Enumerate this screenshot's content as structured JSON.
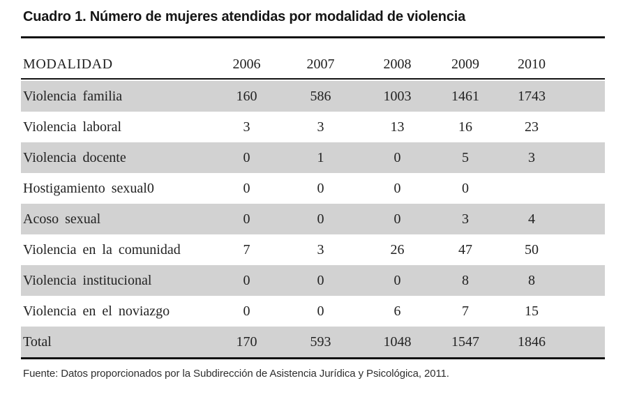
{
  "title": "Cuadro 1. Número de mujeres atendidas por modalidad de violencia",
  "table": {
    "header": {
      "modalidad": "MODALIDAD",
      "years": [
        "2006",
        "2007",
        "2008",
        "2009",
        "2010"
      ]
    },
    "rows": [
      {
        "label": "Violencia familia",
        "values": [
          "160",
          "586",
          "1003",
          "1461",
          "1743"
        ],
        "shaded": true
      },
      {
        "label": "Violencia laboral",
        "values": [
          "3",
          "3",
          "13",
          "16",
          "23"
        ],
        "shaded": false
      },
      {
        "label": "Violencia docente",
        "values": [
          "0",
          "1",
          "0",
          "5",
          "3"
        ],
        "shaded": true
      },
      {
        "label": "Hostigamiento sexual0",
        "values": [
          "0",
          "0",
          "0",
          "0",
          ""
        ],
        "shaded": false
      },
      {
        "label": "Acoso sexual",
        "values": [
          "0",
          "0",
          "0",
          "3",
          "4"
        ],
        "shaded": true
      },
      {
        "label": "Violencia en la comunidad",
        "values": [
          "7",
          "3",
          "26",
          "47",
          "50"
        ],
        "shaded": false
      },
      {
        "label": "Violencia institucional",
        "values": [
          "0",
          "0",
          "0",
          "8",
          "8"
        ],
        "shaded": true
      },
      {
        "label": "Violencia en el noviazgo",
        "values": [
          "0",
          "0",
          "6",
          "7",
          "15"
        ],
        "shaded": false
      },
      {
        "label": "Total",
        "values": [
          "170",
          "593",
          "1048",
          "1547",
          "1846"
        ],
        "shaded": true
      }
    ]
  },
  "footer": "Fuente: Datos proporcionados por la Subdirección de Asistencia Jurídica y Psicológica, 2011.",
  "colors": {
    "shaded_row": "#d2d2d2",
    "rule": "#121212",
    "text": "#222222",
    "background": "#ffffff"
  }
}
